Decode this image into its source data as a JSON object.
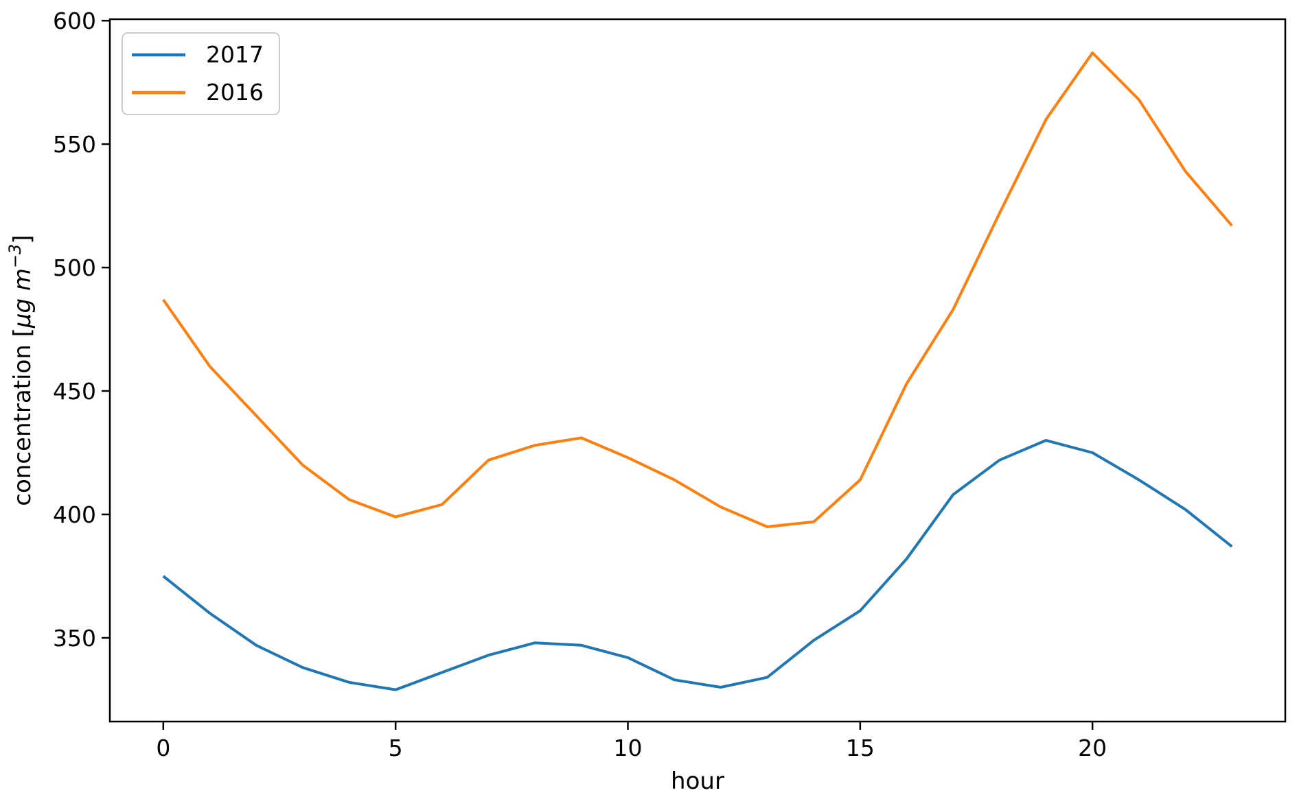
{
  "figure": {
    "background": "#ffffff",
    "axis_color": "#000000"
  },
  "chart_data": {
    "type": "line",
    "title": "",
    "xlabel": "hour",
    "ylabel": "concentration [µg m⁻³]",
    "ylabel_parts": {
      "prefix": "concentration [",
      "math_italic": "µg m",
      "superscript": "−3",
      "suffix": "]"
    },
    "x": [
      0,
      1,
      2,
      3,
      4,
      5,
      6,
      7,
      8,
      9,
      10,
      11,
      12,
      13,
      14,
      15,
      16,
      17,
      18,
      19,
      20,
      21,
      22,
      23
    ],
    "series": [
      {
        "name": "2017",
        "color": "#1f77b4",
        "values": [
          375,
          360,
          347,
          338,
          332,
          329,
          336,
          343,
          348,
          347,
          342,
          333,
          330,
          334,
          349,
          361,
          382,
          408,
          422,
          430,
          425,
          414,
          402,
          387
        ]
      },
      {
        "name": "2016",
        "color": "#ff7f0e",
        "values": [
          487,
          460,
          440,
          420,
          406,
          399,
          404,
          422,
          428,
          431,
          423,
          414,
          403,
          395,
          397,
          414,
          453,
          483,
          522,
          560,
          587,
          568,
          539,
          517
        ]
      }
    ],
    "x_ticks": [
      0,
      5,
      10,
      15,
      20
    ],
    "y_ticks": [
      350,
      400,
      450,
      500,
      550,
      600
    ],
    "xlim": [
      -1.15,
      24.15
    ],
    "ylim": [
      316.1,
      600.6
    ],
    "grid": false,
    "legend": {
      "position": "upper left",
      "entries": [
        "2017",
        "2016"
      ]
    }
  }
}
